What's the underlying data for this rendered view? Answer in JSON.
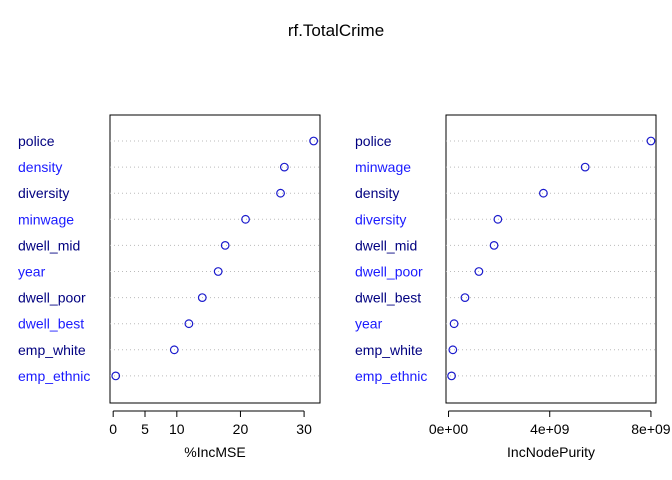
{
  "title": "rf.TotalCrime",
  "colors": {
    "label_dark": "#000080",
    "label_blue": "#1a1aff",
    "point": "#1a1acc",
    "grid": "#bbbbbb",
    "axis": "#000000"
  },
  "chart_data": [
    {
      "type": "scatter",
      "style": "dotchart",
      "xlabel": "%IncMSE",
      "xlim": [
        -0.5,
        32.5
      ],
      "ticks": [
        0,
        5,
        10,
        20,
        30
      ],
      "tick_labels": [
        "0",
        "5",
        "10",
        "20",
        "30"
      ],
      "categories": [
        "police",
        "density",
        "diversity",
        "minwage",
        "dwell_mid",
        "year",
        "dwell_poor",
        "dwell_best",
        "emp_white",
        "emp_ethnic"
      ],
      "values": [
        31.5,
        26.9,
        26.3,
        20.8,
        17.6,
        16.5,
        14.0,
        11.9,
        9.6,
        0.4
      ]
    },
    {
      "type": "scatter",
      "style": "dotchart",
      "xlabel": "IncNodePurity",
      "xlim": [
        -100000000.0,
        8200000000.0
      ],
      "ticks": [
        0,
        4000000000,
        8000000000
      ],
      "tick_labels": [
        "0e+00",
        "4e+09",
        "8e+09"
      ],
      "categories": [
        "police",
        "minwage",
        "density",
        "diversity",
        "dwell_mid",
        "dwell_poor",
        "dwell_best",
        "year",
        "emp_white",
        "emp_ethnic"
      ],
      "values": [
        8000000000.0,
        5400000000.0,
        3750000000.0,
        1950000000.0,
        1800000000.0,
        1200000000.0,
        650000000.0,
        220000000.0,
        170000000.0,
        120000000.0
      ]
    }
  ]
}
